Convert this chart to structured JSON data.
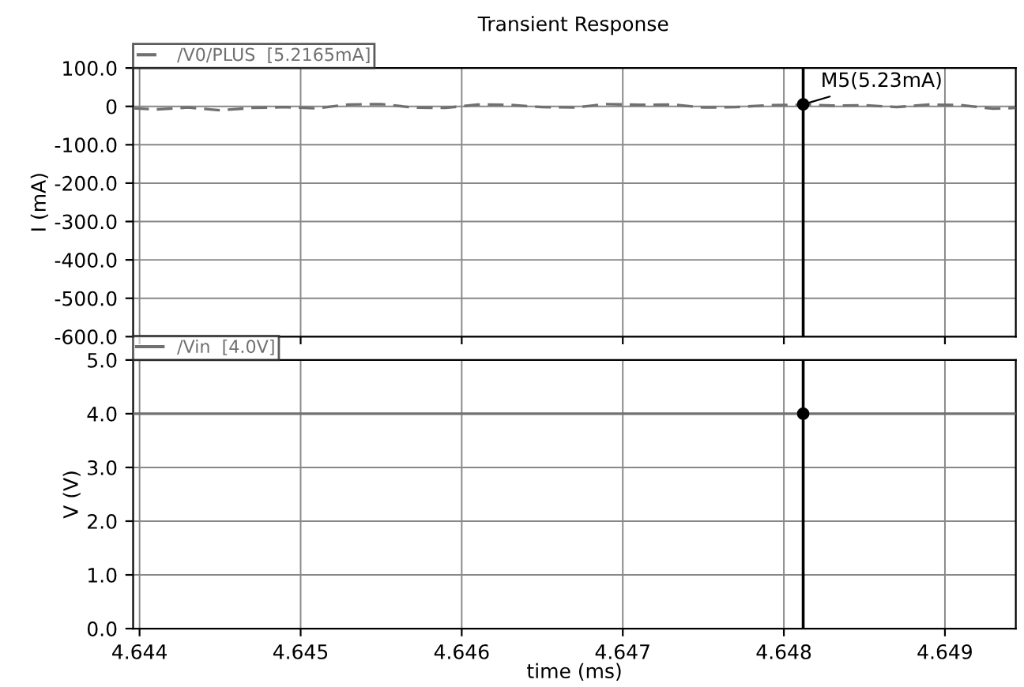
{
  "chart_data": [
    {
      "type": "line",
      "title": "Transient Response",
      "ylabel": "I (mA)",
      "xlim": [
        4.64396,
        4.64944
      ],
      "xticks": [
        4.644,
        4.645,
        4.646,
        4.647,
        4.648,
        4.649
      ],
      "ylim": [
        -600,
        100
      ],
      "yticks": [
        {
          "value": 100,
          "label": "100.0"
        },
        0,
        {
          "value": -100,
          "label": "-100.0"
        },
        {
          "value": -200,
          "label": "-200.0"
        },
        {
          "value": -300,
          "label": "-300.0"
        },
        {
          "value": -400,
          "label": "-400.0"
        },
        {
          "value": -500,
          "label": "-500.0"
        },
        {
          "value": -600,
          "label": "-600.0"
        }
      ],
      "tick_labels": "y",
      "grid": true,
      "legend": "top left",
      "line_style": "dashed",
      "series": [
        {
          "name": "/V0/PLUS  [5.2165mA]",
          "color": "#707070",
          "x": [
            4.64396,
            4.6441,
            4.6443,
            4.6445,
            4.6447,
            4.6449,
            4.6451,
            4.6453,
            4.6455,
            4.6457,
            4.6459,
            4.6461,
            4.6463,
            4.6465,
            4.6467,
            4.6469,
            4.6471,
            4.6473,
            4.6475,
            4.6477,
            4.6479,
            4.6481,
            4.64812,
            4.6483,
            4.6485,
            4.6487,
            4.6489,
            4.6491,
            4.6493,
            4.64944
          ],
          "values": [
            -5,
            -8,
            -3,
            -10,
            -4,
            -2,
            -5,
            5,
            6,
            -3,
            -4,
            5,
            4,
            -2,
            -3,
            6,
            4,
            5,
            -3,
            -2,
            3,
            4,
            5,
            2,
            3,
            -2,
            5,
            3,
            -6,
            -4
          ]
        },
        {
          "type": "scatter",
          "color": "#000000",
          "marker": "circle",
          "x": [
            4.64812
          ],
          "values": [
            5.23
          ]
        }
      ],
      "ref_lines": [
        {
          "axis": "x",
          "value": 4.64812,
          "color": "#000000"
        }
      ],
      "annotations": [
        {
          "text": "M5(5.23mA)",
          "x": 4.64812,
          "y": 5.23
        }
      ]
    },
    {
      "type": "line",
      "ylabel": "V (V)",
      "xlabel": "time (ms)",
      "xlim": [
        4.64396,
        4.64944
      ],
      "xticks": [
        4.644,
        4.645,
        4.646,
        4.647,
        4.648,
        4.649
      ],
      "ylim": [
        0,
        5
      ],
      "yticks": [
        {
          "value": 0,
          "label": "0.0"
        },
        {
          "value": 1,
          "label": "1.0"
        },
        {
          "value": 2,
          "label": "2.0"
        },
        {
          "value": 3,
          "label": "3.0"
        },
        {
          "value": 4,
          "label": "4.0"
        },
        {
          "value": 5,
          "label": "5.0"
        }
      ],
      "grid": true,
      "legend": "top left",
      "line_style": "solid",
      "series": [
        {
          "name": "/Vin  [4.0V]",
          "color": "#707070",
          "x": [
            4.64396,
            4.64944
          ],
          "values": [
            4.0,
            4.0
          ]
        },
        {
          "type": "scatter",
          "color": "#000000",
          "marker": "circle",
          "x": [
            4.64812
          ],
          "values": [
            4.0
          ]
        }
      ],
      "ref_lines": [
        {
          "axis": "x",
          "value": 4.64812,
          "color": "#000000"
        }
      ]
    }
  ]
}
